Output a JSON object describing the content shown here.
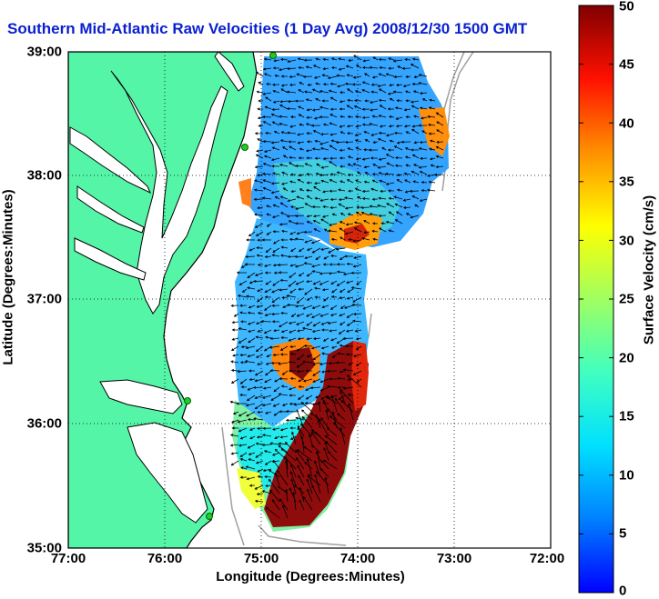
{
  "title": "Southern Mid-Atlantic Raw Velocities (1 Day Avg) 2008/12/30 1500 GMT",
  "x_axis": {
    "label": "Longitude (Degrees:Minutes)",
    "ticks": [
      "77:00",
      "76:00",
      "75:00",
      "74:00",
      "73:00",
      "72:00"
    ],
    "range": [
      -77,
      -72
    ]
  },
  "y_axis": {
    "label": "Latitude (Degrees:Minutes)",
    "ticks": [
      "39:00",
      "38:00",
      "37:00",
      "36:00",
      "35:00"
    ],
    "range": [
      35,
      39
    ]
  },
  "colorbar": {
    "label": "Surface Velocity (cm/s)",
    "ticks": [
      "50",
      "45",
      "40",
      "35",
      "30",
      "25",
      "20",
      "15",
      "10",
      "5",
      "0"
    ],
    "range": [
      0,
      50
    ],
    "colormap": "jet"
  },
  "colors": {
    "land": "#55f5a8",
    "coastline": "#000000",
    "bathymetry": "#a0a0a0",
    "station": "#22cc22",
    "title": "#0a1fd0",
    "grid": "#000000"
  },
  "grid": true,
  "field_regions": [
    {
      "name": "northern",
      "speed_cm_s": 12
    },
    {
      "name": "central",
      "speed_cm_s": 14
    },
    {
      "name": "southern-jet",
      "speed_cm_s": 48
    }
  ]
}
